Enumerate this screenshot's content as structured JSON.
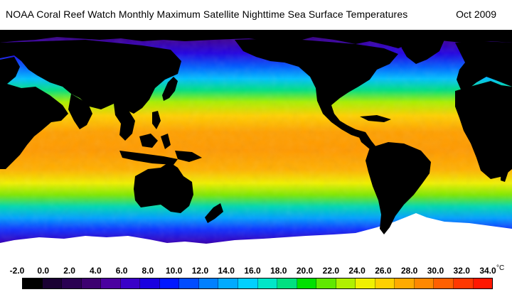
{
  "header": {
    "title": "NOAA Coral Reef Watch Monthly Maximum Satellite Nighttime Sea Surface Temperatures",
    "date": "Oct 2009"
  },
  "map": {
    "projection": "equirectangular, centered on Pacific",
    "land_color": "#000000",
    "ice_color": "#ffffff"
  },
  "legend": {
    "unit": "°C",
    "tick_labels": [
      "-2.0",
      "0.0",
      "2.0",
      "4.0",
      "6.0",
      "8.0",
      "10.0",
      "12.0",
      "14.0",
      "16.0",
      "18.0",
      "20.0",
      "22.0",
      "24.0",
      "26.0",
      "28.0",
      "30.0",
      "32.0",
      "34.0"
    ],
    "swatches": [
      "#000000",
      "#1a0033",
      "#2a0052",
      "#3d0070",
      "#4b00a0",
      "#3a00c8",
      "#1a00e0",
      "#0018ff",
      "#004cff",
      "#0080ff",
      "#00aaff",
      "#00d0ff",
      "#00e6c8",
      "#00e080",
      "#00e000",
      "#60e800",
      "#b0f000",
      "#f0f000",
      "#ffd000",
      "#ffaa00",
      "#ff8800",
      "#ff6000",
      "#ff3800",
      "#ff1800"
    ]
  }
}
